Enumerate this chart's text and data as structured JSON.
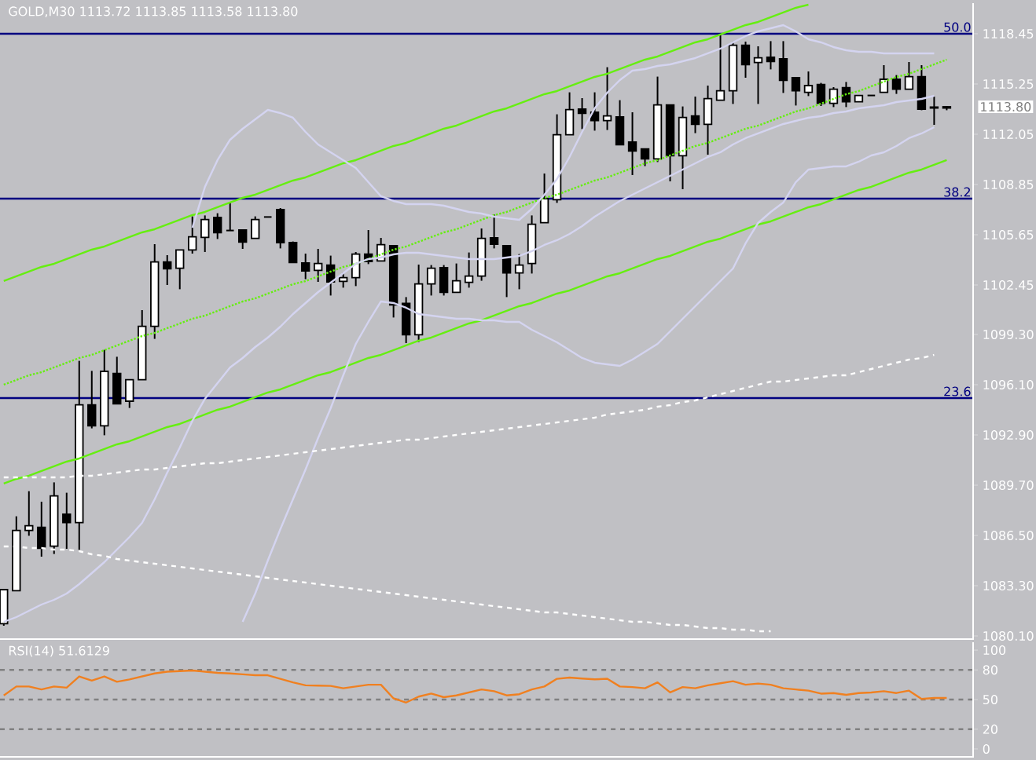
{
  "chart_data": [
    {
      "type": "candlestick",
      "title": "GOLD,M30 1113.72 1113.85 1113.58 1113.80",
      "categories": [
        null,
        null,
        null,
        null,
        null,
        null,
        null,
        null,
        null,
        null,
        null,
        null,
        null,
        null,
        null,
        null,
        null,
        null,
        null,
        null,
        null,
        null,
        null,
        null,
        null,
        null,
        null,
        null,
        null,
        null,
        null,
        null,
        null,
        null,
        null,
        null,
        null,
        null,
        null,
        null,
        null,
        null,
        null,
        null,
        null,
        null,
        null,
        null,
        null,
        null,
        null,
        null,
        null,
        null,
        null,
        null,
        null,
        null,
        null,
        null,
        null,
        null,
        null,
        null,
        null,
        null,
        null,
        null,
        null,
        null,
        null,
        null,
        null,
        null,
        null,
        null
      ],
      "ohlc": [
        [
          1080.88,
          1083.05,
          1080.75,
          1083.05
        ],
        [
          1082.98,
          1087.72,
          1082.98,
          1086.82
        ],
        [
          1086.82,
          1089.32,
          1086.48,
          1087.12
        ],
        [
          1087.02,
          1088.65,
          1085.15,
          1085.68
        ],
        [
          1085.82,
          1089.88,
          1085.32,
          1089.02
        ],
        [
          1087.85,
          1089.22,
          1085.65,
          1087.32
        ],
        [
          1087.32,
          1097.62,
          1085.58,
          1094.82
        ],
        [
          1094.82,
          1096.98,
          1093.32,
          1093.48
        ],
        [
          1093.48,
          1098.32,
          1092.88,
          1096.95
        ],
        [
          1096.82,
          1097.88,
          1094.88,
          1094.88
        ],
        [
          1095.05,
          1096.42,
          1094.62,
          1096.42
        ],
        [
          1096.42,
          1100.85,
          1096.42,
          1099.82
        ],
        [
          1099.82,
          1105.05,
          1099.02,
          1103.92
        ],
        [
          1103.92,
          1104.35,
          1102.45,
          1103.48
        ],
        [
          1103.52,
          1104.68,
          1102.18,
          1104.68
        ],
        [
          1104.68,
          1106.82,
          1104.45,
          1105.52
        ],
        [
          1105.48,
          1106.88,
          1104.55,
          1106.62
        ],
        [
          1106.75,
          1107.02,
          1105.38,
          1105.78
        ],
        [
          1105.92,
          1107.72,
          1105.92,
          1105.92
        ],
        [
          1105.95,
          1105.95,
          1104.75,
          1105.18
        ],
        [
          1105.42,
          1106.82,
          1105.42,
          1106.62
        ],
        [
          1106.78,
          1106.78,
          1106.78,
          1106.78
        ],
        [
          1107.25,
          1107.35,
          1104.78,
          1105.15
        ],
        [
          1105.15,
          1105.22,
          1103.88,
          1103.88
        ],
        [
          1103.85,
          1104.45,
          1102.82,
          1103.35
        ],
        [
          1103.38,
          1104.75,
          1102.65,
          1103.82
        ],
        [
          1103.72,
          1104.32,
          1101.78,
          1102.65
        ],
        [
          1102.68,
          1103.25,
          1102.28,
          1102.92
        ],
        [
          1102.92,
          1104.55,
          1102.38,
          1104.42
        ],
        [
          1104.42,
          1105.95,
          1103.78,
          1103.95
        ],
        [
          1103.98,
          1105.45,
          1103.98,
          1105.02
        ],
        [
          1104.95,
          1104.95,
          1100.38,
          1101.18
        ],
        [
          1101.28,
          1101.68,
          1098.75,
          1099.28
        ],
        [
          1099.28,
          1103.75,
          1098.82,
          1102.52
        ],
        [
          1102.52,
          1103.72,
          1101.78,
          1103.52
        ],
        [
          1103.55,
          1103.72,
          1101.78,
          1101.98
        ],
        [
          1101.98,
          1103.82,
          1101.98,
          1102.72
        ],
        [
          1102.62,
          1104.52,
          1102.28,
          1103.02
        ],
        [
          1103.02,
          1106.05,
          1102.72,
          1105.42
        ],
        [
          1105.45,
          1106.95,
          1104.78,
          1105.05
        ],
        [
          1104.95,
          1104.95,
          1101.68,
          1103.22
        ],
        [
          1103.22,
          1104.42,
          1102.18,
          1103.72
        ],
        [
          1103.82,
          1106.88,
          1103.18,
          1106.32
        ],
        [
          1106.42,
          1109.55,
          1106.42,
          1107.95
        ],
        [
          1107.88,
          1113.32,
          1107.68,
          1112.02
        ],
        [
          1112.02,
          1114.72,
          1112.02,
          1113.62
        ],
        [
          1113.65,
          1114.35,
          1112.38,
          1113.38
        ],
        [
          1113.45,
          1114.72,
          1112.28,
          1112.92
        ],
        [
          1112.92,
          1116.32,
          1112.32,
          1113.22
        ],
        [
          1113.15,
          1114.22,
          1111.38,
          1111.38
        ],
        [
          1111.55,
          1113.45,
          1109.45,
          1110.98
        ],
        [
          1111.12,
          1111.12,
          1110.02,
          1110.48
        ],
        [
          1110.48,
          1115.72,
          1110.28,
          1113.92
        ],
        [
          1113.92,
          1113.92,
          1109.05,
          1110.68
        ],
        [
          1110.68,
          1113.82,
          1108.55,
          1113.12
        ],
        [
          1113.22,
          1114.45,
          1112.12,
          1112.68
        ],
        [
          1112.68,
          1115.15,
          1110.75,
          1114.32
        ],
        [
          1114.22,
          1118.45,
          1114.22,
          1114.82
        ],
        [
          1114.82,
          1117.95,
          1113.98,
          1117.72
        ],
        [
          1117.72,
          1117.95,
          1115.65,
          1116.48
        ],
        [
          1116.62,
          1117.65,
          1113.98,
          1116.92
        ],
        [
          1116.95,
          1117.98,
          1116.18,
          1116.68
        ],
        [
          1116.85,
          1117.98,
          1114.68,
          1115.48
        ],
        [
          1115.65,
          1115.65,
          1113.88,
          1114.82
        ],
        [
          1114.72,
          1116.05,
          1114.48,
          1115.15
        ],
        [
          1115.22,
          1115.32,
          1113.85,
          1114.02
        ],
        [
          1114.02,
          1115.05,
          1113.78,
          1114.92
        ],
        [
          1115.02,
          1115.38,
          1113.78,
          1114.12
        ],
        [
          1114.12,
          1114.52,
          1114.12,
          1114.52
        ],
        [
          1114.52,
          1114.52,
          1114.52,
          1114.52
        ],
        [
          1114.72,
          1116.45,
          1114.72,
          1115.55
        ],
        [
          1115.55,
          1115.82,
          1114.62,
          1114.92
        ],
        [
          1114.92,
          1116.65,
          1114.92,
          1115.72
        ],
        [
          1115.72,
          1116.45,
          1113.58,
          1113.65
        ],
        [
          1113.78,
          1114.45,
          1112.65,
          1113.72
        ],
        [
          1113.72,
          1113.85,
          1113.58,
          1113.8
        ]
      ],
      "series": [
        {
          "type": "line",
          "color": "#66ee11",
          "line_style": "solid",
          "values": [
            1102.7,
            1103.0,
            1103.3,
            1103.6,
            1103.8,
            1104.1,
            1104.4,
            1104.7,
            1104.9,
            1105.2,
            1105.5,
            1105.8,
            1106.0,
            1106.3,
            1106.6,
            1106.9,
            1107.1,
            1107.4,
            1107.7,
            1108.0,
            1108.2,
            1108.5,
            1108.8,
            1109.1,
            1109.3,
            1109.6,
            1109.9,
            1110.2,
            1110.4,
            1110.7,
            1111.0,
            1111.3,
            1111.5,
            1111.8,
            1112.1,
            1112.4,
            1112.6,
            1112.9,
            1113.2,
            1113.5,
            1113.7,
            1114.0,
            1114.3,
            1114.6,
            1114.8,
            1115.1,
            1115.4,
            1115.7,
            1115.9,
            1116.2,
            1116.5,
            1116.8,
            1117.0,
            1117.3,
            1117.6,
            1117.9,
            1118.1,
            1118.4,
            1118.7,
            1119.0,
            1119.2,
            1119.5,
            1119.8,
            1120.1,
            1120.3,
            null,
            null,
            null,
            null,
            null,
            null,
            null,
            null,
            null,
            null,
            null
          ]
        },
        {
          "type": "line",
          "color": "#66ee11",
          "line_style": "solid",
          "values": [
            1089.8,
            1090.1,
            1090.3,
            1090.6,
            1090.9,
            1091.2,
            1091.4,
            1091.7,
            1092.0,
            1092.3,
            1092.5,
            1092.8,
            1093.1,
            1093.4,
            1093.6,
            1093.9,
            1094.2,
            1094.5,
            1094.7,
            1095.0,
            1095.3,
            1095.6,
            1095.8,
            1096.1,
            1096.4,
            1096.7,
            1096.9,
            1097.2,
            1097.5,
            1097.8,
            1098.0,
            1098.3,
            1098.6,
            1098.9,
            1099.1,
            1099.4,
            1099.7,
            1100.0,
            1100.2,
            1100.5,
            1100.8,
            1101.1,
            1101.3,
            1101.6,
            1101.9,
            1102.1,
            1102.4,
            1102.7,
            1103.0,
            1103.2,
            1103.5,
            1103.8,
            1104.1,
            1104.3,
            1104.6,
            1104.9,
            1105.2,
            1105.4,
            1105.7,
            1106.0,
            1106.3,
            1106.5,
            1106.8,
            1107.1,
            1107.4,
            1107.6,
            1107.9,
            1108.2,
            1108.5,
            1108.7,
            1109.0,
            1109.3,
            1109.6,
            1109.8,
            1110.1,
            1110.4
          ]
        },
        {
          "type": "line",
          "color": "#66ee11",
          "line_style": "dotted",
          "values": [
            1096.1,
            1096.4,
            1096.7,
            1096.9,
            1097.2,
            1097.5,
            1097.8,
            1098.0,
            1098.3,
            1098.6,
            1098.9,
            1099.2,
            1099.4,
            1099.7,
            1100.0,
            1100.3,
            1100.5,
            1100.8,
            1101.1,
            1101.4,
            1101.6,
            1101.9,
            1102.2,
            1102.5,
            1102.7,
            1103.0,
            1103.3,
            1103.6,
            1103.8,
            1104.1,
            1104.4,
            1104.7,
            1104.9,
            1105.2,
            1105.5,
            1105.8,
            1106.0,
            1106.3,
            1106.6,
            1106.9,
            1107.1,
            1107.4,
            1107.7,
            1108.0,
            1108.2,
            1108.5,
            1108.8,
            1109.1,
            1109.3,
            1109.6,
            1109.9,
            1110.2,
            1110.4,
            1110.7,
            1111.0,
            1111.3,
            1111.5,
            1111.8,
            1112.1,
            1112.4,
            1112.6,
            1112.9,
            1113.2,
            1113.5,
            1113.7,
            1114.0,
            1114.3,
            1114.6,
            1114.8,
            1115.1,
            1115.4,
            1115.7,
            1115.9,
            1116.2,
            1116.5,
            1116.8
          ]
        },
        {
          "type": "line",
          "color": "#d4d4f0",
          "line_style": "solid",
          "values": [
            null,
            null,
            null,
            null,
            null,
            null,
            null,
            null,
            null,
            null,
            null,
            null,
            null,
            null,
            null,
            1106.1,
            1108.7,
            1110.4,
            1111.7,
            1112.4,
            1113.0,
            1113.6,
            1113.4,
            1113.1,
            1112.2,
            1111.4,
            1110.9,
            1110.4,
            1109.9,
            1109.0,
            1108.1,
            1107.8,
            1107.6,
            1107.6,
            1107.6,
            1107.5,
            1107.3,
            1107.1,
            1107.0,
            1106.8,
            1106.7,
            1106.6,
            1107.3,
            1108.2,
            1109.2,
            1110.6,
            1112.2,
            1113.7,
            1114.7,
            1115.5,
            1116.1,
            1116.2,
            1116.4,
            1116.5,
            1116.7,
            1116.9,
            1117.2,
            1117.5,
            1117.9,
            1118.3,
            1118.6,
            1118.8,
            1119.0,
            1118.6,
            1118.1,
            1117.9,
            1117.6,
            1117.4,
            1117.3,
            1117.3,
            1117.2,
            1117.2,
            1117.2,
            1117.2,
            1117.2,
            null
          ]
        },
        {
          "type": "line",
          "color": "#d4d4f0",
          "line_style": "solid",
          "values": [
            1081.0,
            1081.3,
            1081.7,
            1082.1,
            1082.4,
            1082.8,
            1083.4,
            1084.1,
            1084.8,
            1085.6,
            1086.4,
            1087.3,
            1088.8,
            1090.5,
            1092.1,
            1093.8,
            1095.2,
            1096.2,
            1097.2,
            1097.8,
            1098.5,
            1099.1,
            1099.8,
            1100.6,
            1101.3,
            1102.0,
            1102.6,
            1103.2,
            1103.8,
            1104.1,
            1104.2,
            1104.4,
            1104.5,
            1104.5,
            1104.4,
            1104.3,
            1104.2,
            1104.1,
            1104.1,
            1104.1,
            1104.2,
            1104.3,
            1104.6,
            1105.0,
            1105.3,
            1105.7,
            1106.2,
            1106.8,
            1107.3,
            1107.8,
            1108.2,
            1108.6,
            1109.0,
            1109.4,
            1109.8,
            1110.2,
            1110.6,
            1110.9,
            1111.4,
            1111.8,
            1112.1,
            1112.4,
            1112.7,
            1112.9,
            1113.1,
            1113.2,
            1113.4,
            1113.5,
            1113.7,
            1113.8,
            1113.9,
            1114.1,
            1114.2,
            1114.3,
            1114.5,
            null
          ]
        },
        {
          "type": "line",
          "color": "#d4d4f0",
          "line_style": "solid",
          "values": [
            null,
            null,
            null,
            null,
            null,
            null,
            null,
            null,
            null,
            null,
            null,
            null,
            null,
            null,
            null,
            null,
            null,
            null,
            null,
            1081.0,
            1082.8,
            1084.9,
            1086.9,
            1088.8,
            1090.7,
            1092.7,
            1094.6,
            1096.7,
            1098.7,
            1100.1,
            1101.4,
            1101.3,
            1101.0,
            1100.6,
            1100.5,
            1100.4,
            1100.3,
            1100.3,
            1100.2,
            1100.2,
            1100.1,
            1100.1,
            1099.6,
            1099.2,
            1098.8,
            1098.3,
            1097.8,
            1097.5,
            1097.4,
            1097.3,
            1097.7,
            1098.2,
            1098.7,
            1099.5,
            1100.3,
            1101.1,
            1101.9,
            1102.7,
            1103.5,
            1105.1,
            1106.4,
            1107.1,
            1107.7,
            1109.0,
            1109.8,
            1109.9,
            1110.0,
            1110.0,
            1110.3,
            1110.7,
            1110.9,
            1111.3,
            1111.8,
            1112.1,
            1112.5,
            null
          ]
        },
        {
          "type": "line",
          "color": "#ffffff",
          "line_style": "dashed",
          "values": [
            1090.2,
            1090.2,
            1090.2,
            1090.2,
            1090.2,
            1090.2,
            1090.3,
            1090.3,
            1090.4,
            1090.5,
            1090.6,
            1090.7,
            1090.7,
            1090.8,
            1090.9,
            1091.0,
            1091.1,
            1091.1,
            1091.2,
            1091.3,
            1091.4,
            1091.5,
            1091.6,
            1091.7,
            1091.8,
            1091.9,
            1092.0,
            1092.1,
            1092.2,
            1092.3,
            1092.4,
            1092.5,
            1092.6,
            1092.6,
            1092.7,
            1092.8,
            1092.9,
            1093.0,
            1093.1,
            1093.2,
            1093.3,
            1093.4,
            1093.5,
            1093.6,
            1093.7,
            1093.8,
            1093.9,
            1094.0,
            1094.2,
            1094.3,
            1094.4,
            1094.5,
            1094.7,
            1094.8,
            1095.0,
            1095.1,
            1095.3,
            1095.5,
            1095.7,
            1095.9,
            1096.1,
            1096.3,
            1096.3,
            1096.4,
            1096.5,
            1096.6,
            1096.7,
            1096.7,
            1096.9,
            1097.1,
            1097.3,
            1097.5,
            1097.7,
            1097.8,
            1098.0,
            null
          ]
        },
        {
          "type": "line",
          "color": "#ffffff",
          "line_style": "dashed",
          "values": [
            1085.8,
            1085.8,
            1085.7,
            1085.7,
            1085.6,
            1085.6,
            1085.5,
            1085.3,
            1085.2,
            1085.0,
            1084.9,
            1084.8,
            1084.7,
            1084.6,
            1084.5,
            1084.4,
            1084.3,
            1084.2,
            1084.1,
            1084.0,
            1083.9,
            1083.8,
            1083.7,
            1083.6,
            1083.5,
            1083.4,
            1083.3,
            1083.2,
            1083.1,
            1083.0,
            1082.9,
            1082.8,
            1082.7,
            1082.6,
            1082.5,
            1082.4,
            1082.3,
            1082.2,
            1082.1,
            1082.0,
            1081.9,
            1081.8,
            1081.7,
            1081.6,
            1081.6,
            1081.5,
            1081.4,
            1081.3,
            1081.2,
            1081.1,
            1081.0,
            1081.0,
            1080.9,
            1080.8,
            1080.8,
            1080.7,
            1080.6,
            1080.6,
            1080.5,
            1080.5,
            1080.4,
            1080.4,
            null,
            null,
            null,
            null,
            null,
            null,
            null,
            null,
            null,
            null,
            null,
            null,
            null,
            null
          ]
        }
      ],
      "ylim": [
        1079.9,
        1120.4
      ],
      "yticks": [
        1118.45,
        1115.25,
        1112.05,
        1108.85,
        1105.65,
        1102.45,
        {
          "value": 1099.3,
          "label": "1099.30"
        },
        {
          "value": 1096.1,
          "label": "1096.10"
        },
        {
          "value": 1092.9,
          "label": "1092.90"
        },
        {
          "value": 1089.7,
          "label": "1089.70"
        },
        {
          "value": 1086.5,
          "label": "1086.50"
        },
        {
          "value": 1083.3,
          "label": "1083.30"
        },
        {
          "value": 1080.1,
          "label": "1080.10"
        }
      ],
      "tick_labels": "y",
      "ref_lines": [
        {
          "axis": "y",
          "value": 1118.45,
          "color": "#000080"
        },
        {
          "axis": "y",
          "value": 1107.95,
          "color": "#000080"
        },
        {
          "axis": "y",
          "value": 1095.25,
          "color": "#000080"
        }
      ],
      "annotations": [
        {
          "text": "50.0",
          "y": 1118.45
        },
        {
          "text": "38.2",
          "y": 1107.95
        },
        {
          "text": "23.6",
          "y": 1095.25
        },
        "1113.80"
      ]
    },
    {
      "type": "line",
      "title": "RSI(14) 51.6129",
      "categories": [
        null,
        null,
        null,
        null,
        null,
        null,
        null,
        null,
        null,
        null,
        null,
        null,
        null,
        null,
        null,
        null,
        null,
        null,
        null,
        null,
        null,
        null,
        null,
        null,
        null,
        null,
        null,
        null,
        null,
        null,
        null,
        null,
        null,
        null,
        null,
        null,
        null,
        null,
        null,
        null,
        null,
        null,
        null,
        null,
        null,
        null,
        null,
        null,
        null,
        null,
        null,
        null,
        null,
        null,
        null,
        null,
        null,
        null,
        null,
        null,
        null,
        null,
        null,
        null,
        null,
        null,
        null,
        null,
        null,
        null,
        null,
        null,
        null,
        null,
        null,
        null
      ],
      "series": [
        {
          "color": "#f08020",
          "values": [
            54.2,
            63.2,
            63.2,
            60.2,
            63.2,
            62.0,
            73.4,
            69.2,
            73.4,
            68.0,
            70.4,
            73.4,
            76.4,
            78.2,
            78.8,
            79.4,
            78.2,
            77.0,
            76.4,
            75.5,
            74.6,
            74.6,
            71.0,
            67.4,
            64.4,
            64.1,
            63.8,
            61.4,
            63.2,
            65.0,
            65.0,
            51.2,
            47.0,
            53.0,
            56.0,
            52.4,
            54.2,
            57.2,
            60.2,
            58.4,
            54.2,
            55.4,
            60.2,
            63.2,
            71.0,
            72.2,
            71.3,
            70.4,
            71.0,
            63.2,
            62.6,
            61.4,
            67.4,
            57.2,
            62.6,
            61.4,
            64.4,
            66.5,
            68.6,
            65.0,
            66.2,
            65.0,
            61.4,
            60.2,
            59.0,
            56.0,
            56.6,
            54.8,
            56.6,
            57.2,
            58.4,
            56.6,
            59.0,
            50.6,
            51.6,
            51.6
          ]
        }
      ],
      "ylim": [
        -8,
        108
      ],
      "yticks": [
        100,
        80,
        50,
        20,
        0
      ],
      "tick_labels": "y",
      "ref_lines": [
        {
          "axis": "y",
          "value": 80,
          "color": "#808080",
          "line_style": "dashed"
        },
        {
          "axis": "y",
          "value": 50,
          "color": "#808080",
          "line_style": "dashed"
        },
        {
          "axis": "y",
          "value": 20,
          "color": "#808080",
          "line_style": "dashed"
        }
      ]
    }
  ]
}
